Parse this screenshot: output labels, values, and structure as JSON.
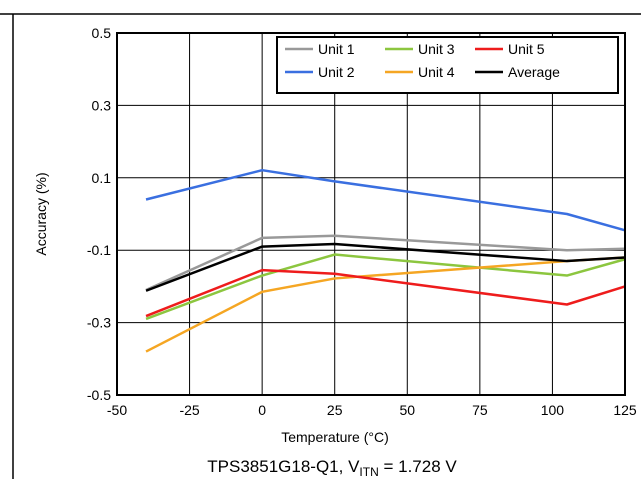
{
  "chart_data": {
    "type": "line",
    "title": "",
    "caption": {
      "main": "TPS3851G18-Q1, V",
      "subscript": "ITN",
      "suffix": " = 1.728 V"
    },
    "xlabel": "Temperature (°C)",
    "ylabel": "Accuracy (%)",
    "xlim": [
      -50,
      125
    ],
    "ylim": [
      -0.5,
      0.5
    ],
    "xticks": [
      -50,
      -25,
      0,
      25,
      50,
      75,
      100,
      125
    ],
    "xtick_labels": [
      "-50",
      "-25",
      "0",
      "25",
      "50",
      "75",
      "100",
      "125"
    ],
    "yticks": [
      -0.5,
      -0.3,
      -0.1,
      0.1,
      0.3,
      0.5
    ],
    "ytick_labels": [
      "-0.5",
      "-0.3",
      "-0.1",
      "0.1",
      "0.3",
      "0.5"
    ],
    "grid": true,
    "legend_placement": "top-right",
    "x": [
      -40,
      0,
      25,
      105,
      125
    ],
    "series": [
      {
        "name": "Unit 1",
        "color": "#999999",
        "values": [
          -0.21,
          -0.066,
          -0.06,
          -0.1,
          -0.096
        ]
      },
      {
        "name": "Unit 2",
        "color": "#3a6fe0",
        "values": [
          0.04,
          0.121,
          0.09,
          0.0,
          -0.045
        ]
      },
      {
        "name": "Unit 3",
        "color": "#8cc63f",
        "values": [
          -0.29,
          -0.17,
          -0.112,
          -0.17,
          -0.125
        ]
      },
      {
        "name": "Unit 4",
        "color": "#f5a623",
        "values": [
          -0.38,
          -0.215,
          -0.178,
          -0.13,
          -0.12
        ]
      },
      {
        "name": "Unit 5",
        "color": "#ee1c1c",
        "values": [
          -0.282,
          -0.155,
          -0.165,
          -0.25,
          -0.2
        ]
      },
      {
        "name": "Average",
        "color": "#000000",
        "values": [
          -0.212,
          -0.09,
          -0.083,
          -0.13,
          -0.12
        ]
      }
    ]
  }
}
